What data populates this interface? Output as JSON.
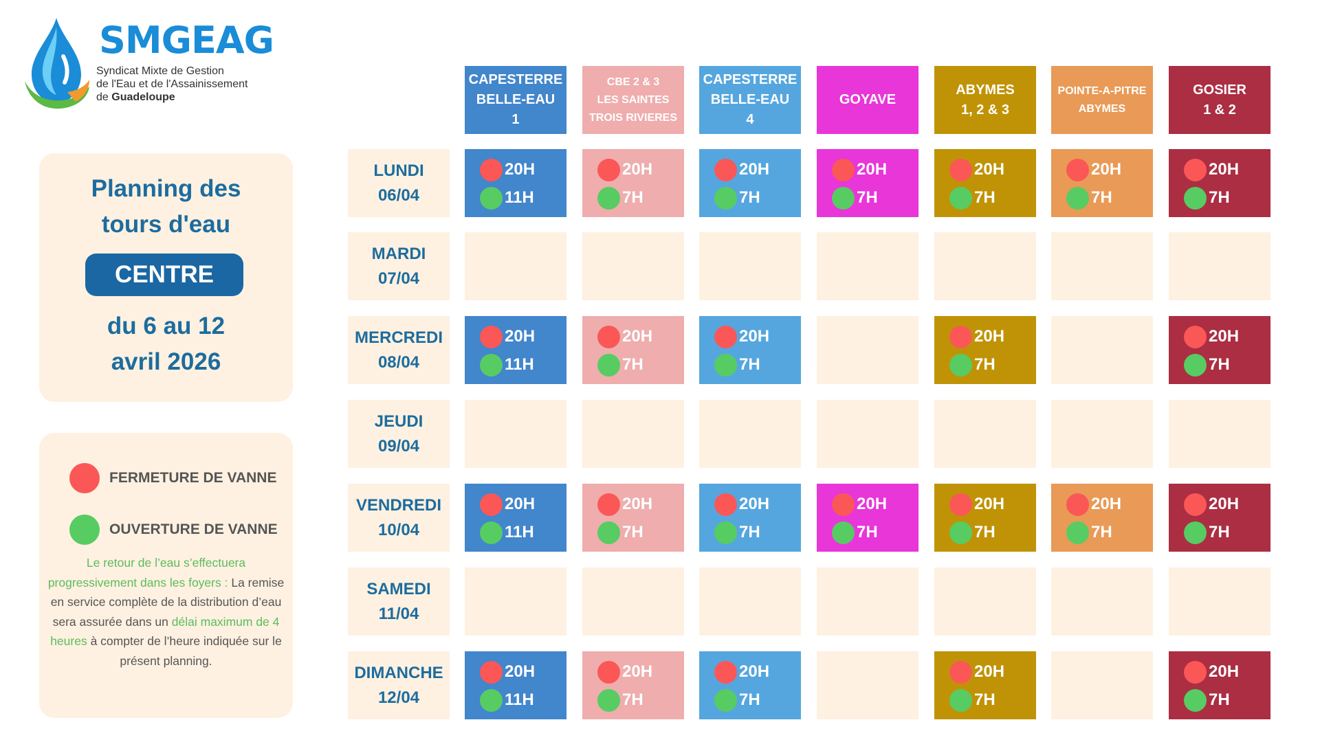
{
  "brand": {
    "name": "SMGEAG",
    "subtitle_lines": [
      "Syndicat Mixte de Gestion",
      "de l'Eau et de l'Assainissement",
      "de "
    ],
    "subtitle_bold": "Guadeloupe"
  },
  "planning": {
    "title_lines": [
      "Planning des",
      "tours d'eau"
    ],
    "region": "CENTRE",
    "date_lines": [
      "du 6 au 12",
      "avril 2026"
    ]
  },
  "legend": {
    "close_label": "FERMETURE DE VANNE",
    "open_label": "OUVERTURE DE VANNE",
    "note_green_1": "Le retour de l’eau s’effectuera progressivement dans les foyers :",
    "note_text_1": "La remise en service complète de la distribution d’eau sera assurée dans un",
    "note_green_2": "délai maximum de 4 heures",
    "note_text_2": "à compter de l’heure indiquée sur le présent planning."
  },
  "colors": {
    "close": "#fb5757",
    "open": "#57cc62",
    "cell_bg": "#fef1e1",
    "title_blue": "#1d6c9e",
    "pill_blue": "#1a67a3",
    "brand_blue": "#1a8cd8"
  },
  "zones": [
    {
      "lines": [
        "CAPESTERRE",
        "BELLE-EAU",
        "1"
      ],
      "color": "#4286cc",
      "small": false
    },
    {
      "lines": [
        "CBE 2 & 3",
        "LES SAINTES",
        "TROIS RIVIERES"
      ],
      "color": "#efadad",
      "small": true
    },
    {
      "lines": [
        "CAPESTERRE",
        "BELLE-EAU",
        "4"
      ],
      "color": "#55a6df",
      "small": false
    },
    {
      "lines": [
        "GOYAVE"
      ],
      "color": "#e836d8",
      "small": false
    },
    {
      "lines": [
        "ABYMES",
        "1, 2 & 3"
      ],
      "color": "#c09306",
      "small": false
    },
    {
      "lines": [
        "POINTE-A-PITRE",
        "ABYMES"
      ],
      "color": "#e99a56",
      "small": true
    },
    {
      "lines": [
        "GOSIER",
        "1 & 2"
      ],
      "color": "#ab2e43",
      "small": false
    }
  ],
  "days": [
    {
      "name": "LUNDI",
      "date": "06/04",
      "slots": [
        [
          "20H",
          "11H"
        ],
        [
          "20H",
          "7H"
        ],
        [
          "20H",
          "7H"
        ],
        [
          "20H",
          "7H"
        ],
        [
          "20H",
          "7H"
        ],
        [
          "20H",
          "7H"
        ],
        [
          "20H",
          "7H"
        ]
      ]
    },
    {
      "name": "MARDI",
      "date": "07/04",
      "slots": [
        null,
        null,
        null,
        null,
        null,
        null,
        null
      ]
    },
    {
      "name": "MERCREDI",
      "date": "08/04",
      "slots": [
        [
          "20H",
          "11H"
        ],
        [
          "20H",
          "7H"
        ],
        [
          "20H",
          "7H"
        ],
        null,
        [
          "20H",
          "7H"
        ],
        null,
        [
          "20H",
          "7H"
        ]
      ]
    },
    {
      "name": "JEUDI",
      "date": "09/04",
      "slots": [
        null,
        null,
        null,
        null,
        null,
        null,
        null
      ]
    },
    {
      "name": "VENDREDI",
      "date": "10/04",
      "slots": [
        [
          "20H",
          "11H"
        ],
        [
          "20H",
          "7H"
        ],
        [
          "20H",
          "7H"
        ],
        [
          "20H",
          "7H"
        ],
        [
          "20H",
          "7H"
        ],
        [
          "20H",
          "7H"
        ],
        [
          "20H",
          "7H"
        ]
      ]
    },
    {
      "name": "SAMEDI",
      "date": "11/04",
      "slots": [
        null,
        null,
        null,
        null,
        null,
        null,
        null
      ]
    },
    {
      "name": "DIMANCHE",
      "date": "12/04",
      "slots": [
        [
          "20H",
          "11H"
        ],
        [
          "20H",
          "7H"
        ],
        [
          "20H",
          "7H"
        ],
        null,
        [
          "20H",
          "7H"
        ],
        null,
        [
          "20H",
          "7H"
        ]
      ]
    }
  ]
}
